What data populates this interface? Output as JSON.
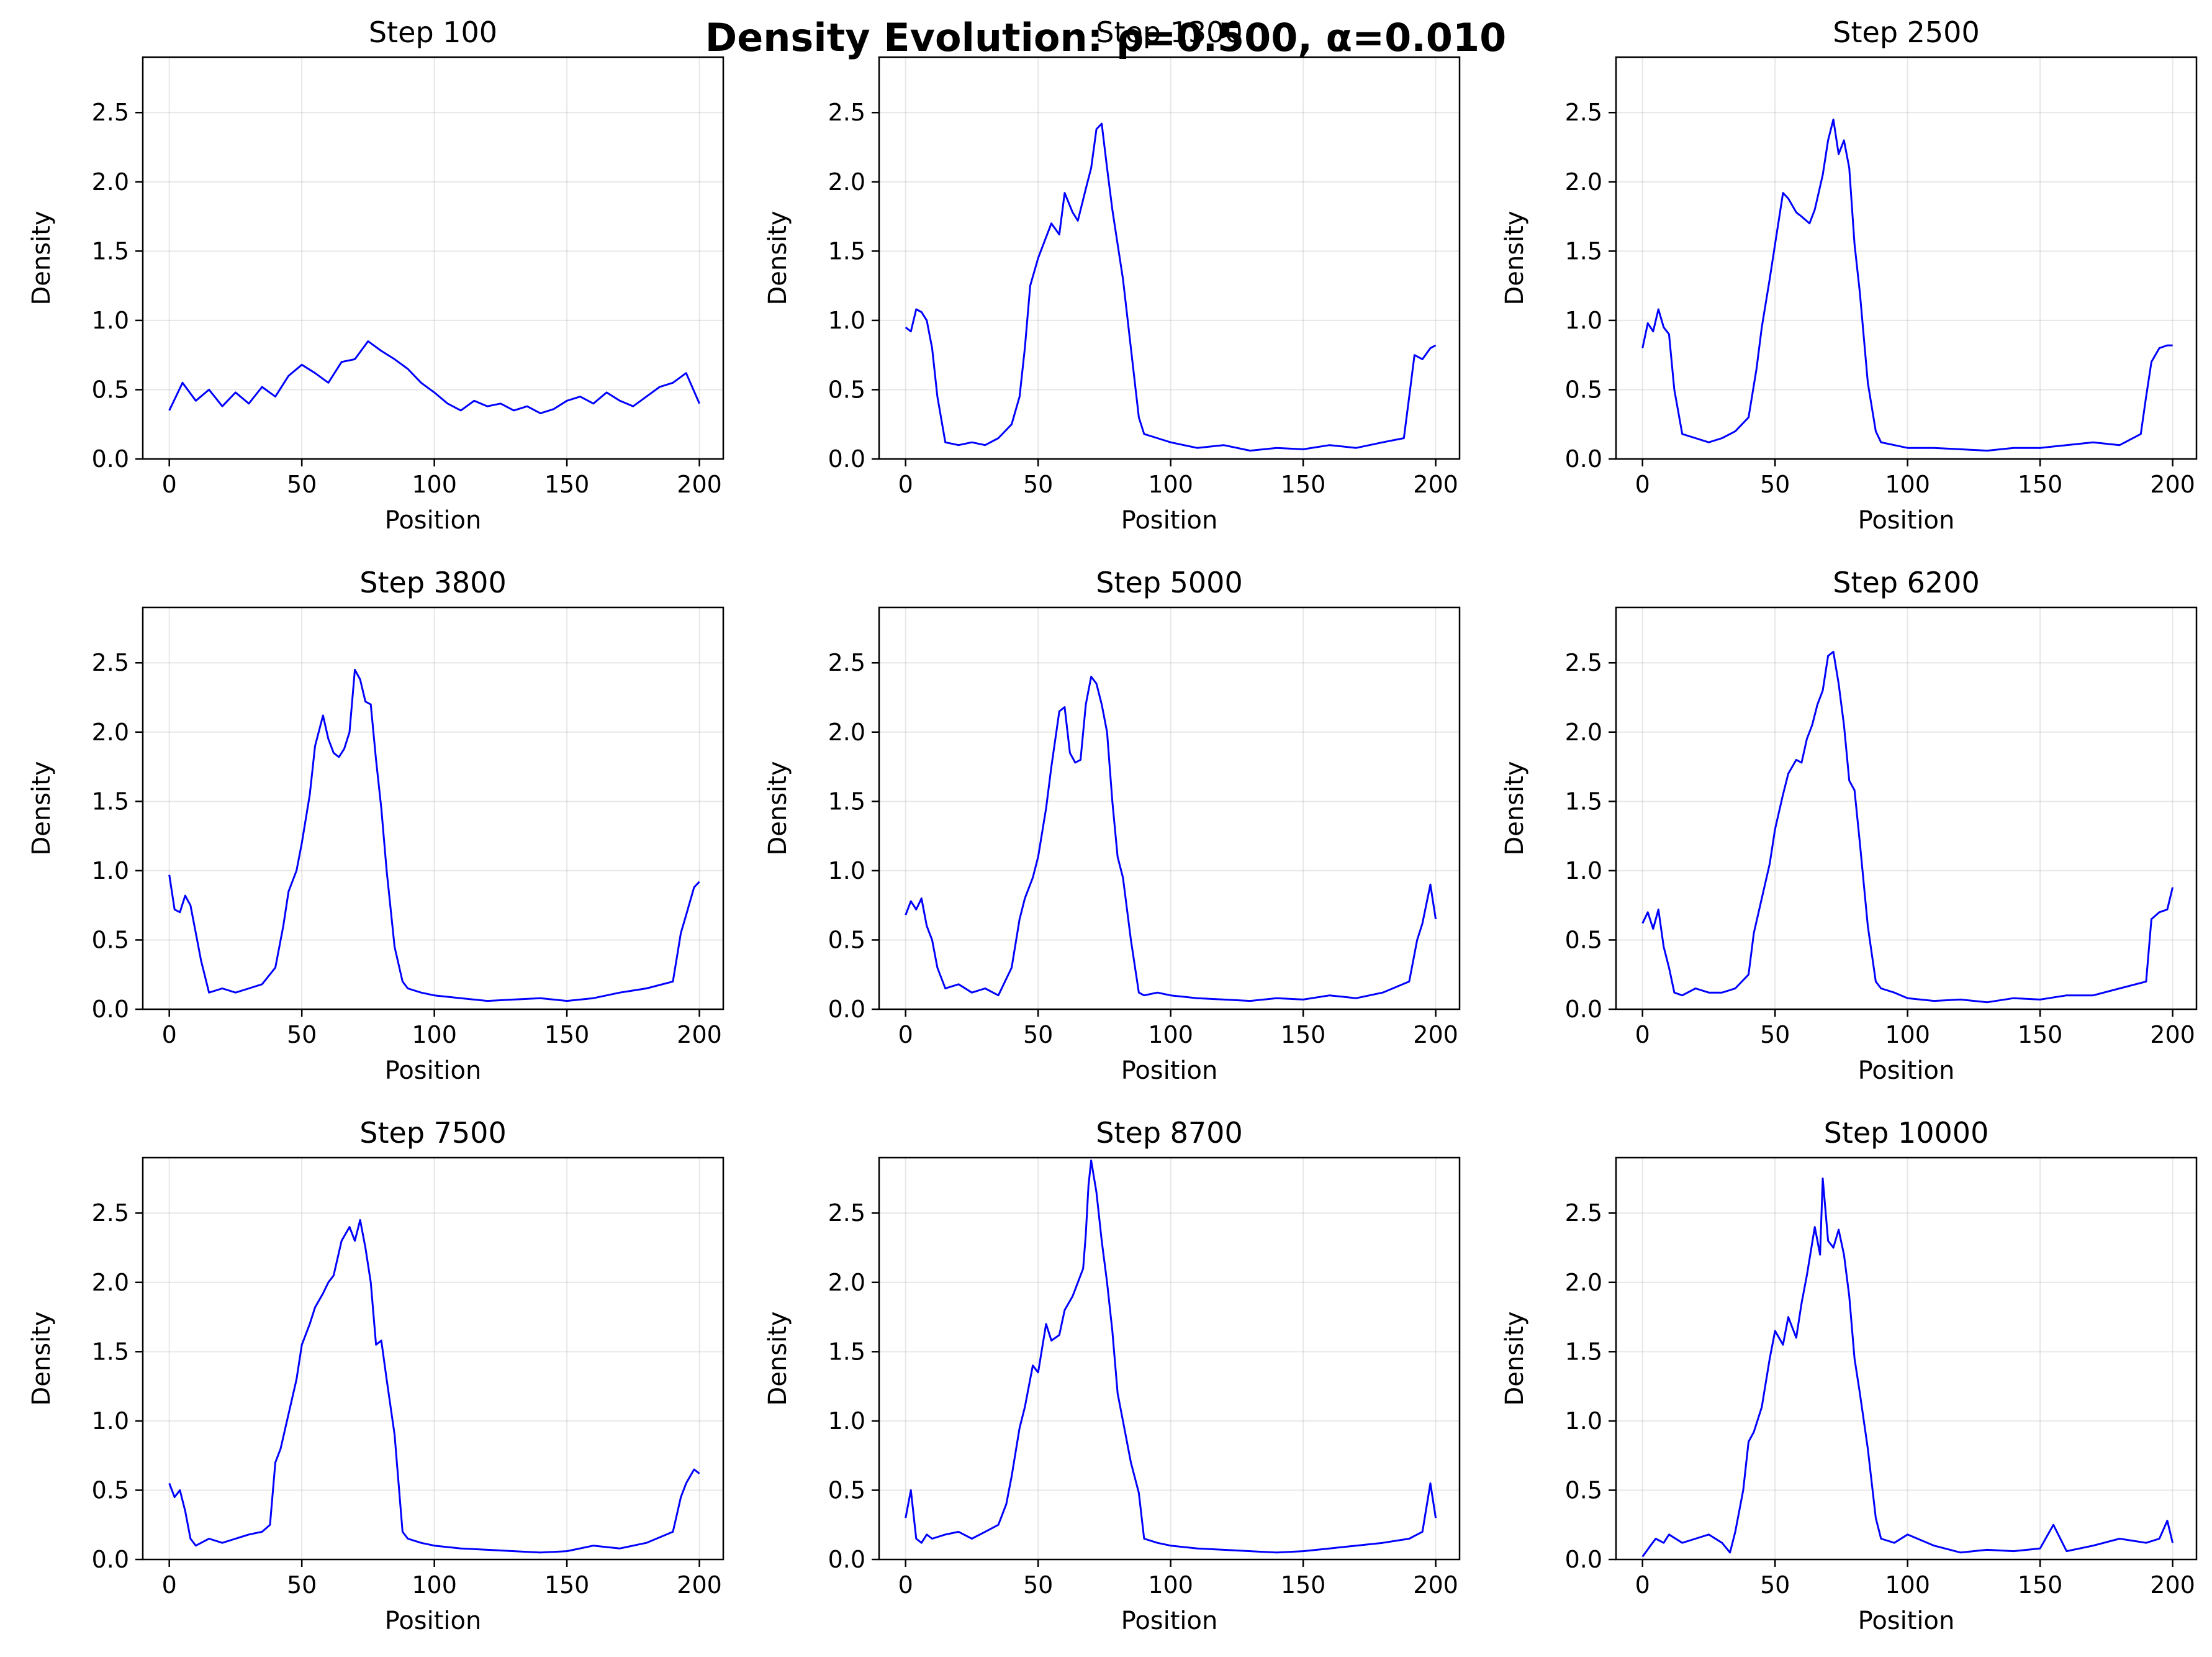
{
  "figure": {
    "title": "Density Evolution: ρ=0.500, α=0.010",
    "line_color": "#0000ff"
  },
  "chart_data": [
    {
      "type": "line",
      "title": "Step 100",
      "xlabel": "Position",
      "ylabel": "Density",
      "xlim": [
        -10,
        209
      ],
      "ylim": [
        0,
        2.9
      ],
      "xticks": [
        0,
        50,
        100,
        150,
        200
      ],
      "yticks": [
        0.0,
        0.5,
        1.0,
        1.5,
        2.0,
        2.5
      ],
      "xtick_labels": [
        "0",
        "50",
        "100",
        "150",
        "200"
      ],
      "ytick_labels": [
        "0.0",
        "0.5",
        "1.0",
        "1.5",
        "2.0",
        "2.5"
      ],
      "grid": true,
      "x": [
        0,
        5,
        10,
        15,
        20,
        25,
        30,
        35,
        40,
        45,
        50,
        55,
        60,
        65,
        70,
        75,
        80,
        85,
        90,
        95,
        100,
        105,
        110,
        115,
        120,
        125,
        130,
        135,
        140,
        145,
        150,
        155,
        160,
        165,
        170,
        175,
        180,
        185,
        190,
        195,
        200
      ],
      "y": [
        0.35,
        0.55,
        0.42,
        0.5,
        0.38,
        0.48,
        0.4,
        0.52,
        0.45,
        0.6,
        0.68,
        0.62,
        0.55,
        0.7,
        0.72,
        0.85,
        0.78,
        0.72,
        0.65,
        0.55,
        0.48,
        0.4,
        0.35,
        0.42,
        0.38,
        0.4,
        0.35,
        0.38,
        0.33,
        0.36,
        0.42,
        0.45,
        0.4,
        0.48,
        0.42,
        0.38,
        0.45,
        0.52,
        0.55,
        0.62,
        0.4
      ]
    },
    {
      "type": "line",
      "title": "Step 1300",
      "xlabel": "Position",
      "ylabel": "Density",
      "xlim": [
        -10,
        209
      ],
      "ylim": [
        0,
        2.9
      ],
      "xticks": [
        0,
        50,
        100,
        150,
        200
      ],
      "yticks": [
        0.0,
        0.5,
        1.0,
        1.5,
        2.0,
        2.5
      ],
      "xtick_labels": [
        "0",
        "50",
        "100",
        "150",
        "200"
      ],
      "ytick_labels": [
        "0.0",
        "0.5",
        "1.0",
        "1.5",
        "2.0",
        "2.5"
      ],
      "grid": true,
      "x": [
        0,
        2,
        4,
        6,
        8,
        10,
        12,
        15,
        20,
        25,
        30,
        35,
        40,
        43,
        45,
        47,
        50,
        53,
        55,
        58,
        60,
        63,
        65,
        68,
        70,
        72,
        74,
        76,
        78,
        80,
        82,
        85,
        88,
        90,
        95,
        100,
        110,
        120,
        130,
        140,
        150,
        160,
        170,
        180,
        188,
        190,
        192,
        195,
        198,
        200
      ],
      "y": [
        0.95,
        0.92,
        1.08,
        1.06,
        1.0,
        0.8,
        0.45,
        0.12,
        0.1,
        0.12,
        0.1,
        0.15,
        0.25,
        0.45,
        0.8,
        1.25,
        1.45,
        1.6,
        1.7,
        1.62,
        1.92,
        1.78,
        1.72,
        1.95,
        2.1,
        2.38,
        2.42,
        2.1,
        1.8,
        1.55,
        1.3,
        0.8,
        0.3,
        0.18,
        0.15,
        0.12,
        0.08,
        0.1,
        0.06,
        0.08,
        0.07,
        0.1,
        0.08,
        0.12,
        0.15,
        0.45,
        0.75,
        0.72,
        0.8,
        0.82
      ]
    },
    {
      "type": "line",
      "title": "Step 2500",
      "xlabel": "Position",
      "ylabel": "Density",
      "xlim": [
        -10,
        209
      ],
      "ylim": [
        0,
        2.9
      ],
      "xticks": [
        0,
        50,
        100,
        150,
        200
      ],
      "yticks": [
        0.0,
        0.5,
        1.0,
        1.5,
        2.0,
        2.5
      ],
      "xtick_labels": [
        "0",
        "50",
        "100",
        "150",
        "200"
      ],
      "ytick_labels": [
        "0.0",
        "0.5",
        "1.0",
        "1.5",
        "2.0",
        "2.5"
      ],
      "grid": true,
      "x": [
        0,
        2,
        4,
        6,
        8,
        10,
        12,
        15,
        20,
        25,
        30,
        35,
        40,
        43,
        45,
        48,
        50,
        53,
        55,
        58,
        60,
        63,
        65,
        68,
        70,
        72,
        74,
        76,
        78,
        80,
        82,
        85,
        88,
        90,
        95,
        100,
        110,
        120,
        130,
        140,
        150,
        160,
        170,
        180,
        188,
        190,
        192,
        195,
        198,
        200
      ],
      "y": [
        0.8,
        0.98,
        0.92,
        1.08,
        0.95,
        0.9,
        0.5,
        0.18,
        0.15,
        0.12,
        0.15,
        0.2,
        0.3,
        0.65,
        0.95,
        1.3,
        1.55,
        1.92,
        1.88,
        1.78,
        1.75,
        1.7,
        1.8,
        2.05,
        2.3,
        2.45,
        2.2,
        2.3,
        2.1,
        1.55,
        1.2,
        0.55,
        0.2,
        0.12,
        0.1,
        0.08,
        0.08,
        0.07,
        0.06,
        0.08,
        0.08,
        0.1,
        0.12,
        0.1,
        0.18,
        0.45,
        0.7,
        0.8,
        0.82,
        0.82
      ]
    },
    {
      "type": "line",
      "title": "Step 3800",
      "xlabel": "Position",
      "ylabel": "Density",
      "xlim": [
        -10,
        209
      ],
      "ylim": [
        0,
        2.9
      ],
      "xticks": [
        0,
        50,
        100,
        150,
        200
      ],
      "yticks": [
        0.0,
        0.5,
        1.0,
        1.5,
        2.0,
        2.5
      ],
      "xtick_labels": [
        "0",
        "50",
        "100",
        "150",
        "200"
      ],
      "ytick_labels": [
        "0.0",
        "0.5",
        "1.0",
        "1.5",
        "2.0",
        "2.5"
      ],
      "grid": true,
      "x": [
        0,
        2,
        4,
        6,
        8,
        10,
        12,
        15,
        20,
        25,
        30,
        35,
        40,
        43,
        45,
        48,
        50,
        53,
        55,
        58,
        60,
        62,
        64,
        66,
        68,
        70,
        72,
        74,
        76,
        78,
        80,
        82,
        85,
        88,
        90,
        95,
        100,
        110,
        120,
        130,
        140,
        150,
        160,
        170,
        180,
        190,
        193,
        195,
        198,
        200
      ],
      "y": [
        0.97,
        0.72,
        0.7,
        0.82,
        0.75,
        0.55,
        0.35,
        0.12,
        0.15,
        0.12,
        0.15,
        0.18,
        0.3,
        0.6,
        0.85,
        1.0,
        1.2,
        1.55,
        1.9,
        2.12,
        1.95,
        1.85,
        1.82,
        1.88,
        2.0,
        2.45,
        2.38,
        2.22,
        2.2,
        1.8,
        1.45,
        1.0,
        0.45,
        0.2,
        0.15,
        0.12,
        0.1,
        0.08,
        0.06,
        0.07,
        0.08,
        0.06,
        0.08,
        0.12,
        0.15,
        0.2,
        0.55,
        0.68,
        0.88,
        0.92
      ]
    },
    {
      "type": "line",
      "title": "Step 5000",
      "xlabel": "Position",
      "ylabel": "Density",
      "xlim": [
        -10,
        209
      ],
      "ylim": [
        0,
        2.9
      ],
      "xticks": [
        0,
        50,
        100,
        150,
        200
      ],
      "yticks": [
        0.0,
        0.5,
        1.0,
        1.5,
        2.0,
        2.5
      ],
      "xtick_labels": [
        "0",
        "50",
        "100",
        "150",
        "200"
      ],
      "ytick_labels": [
        "0.0",
        "0.5",
        "1.0",
        "1.5",
        "2.0",
        "2.5"
      ],
      "grid": true,
      "x": [
        0,
        2,
        4,
        6,
        8,
        10,
        12,
        15,
        20,
        25,
        30,
        35,
        40,
        43,
        45,
        48,
        50,
        53,
        55,
        58,
        60,
        62,
        64,
        66,
        68,
        70,
        72,
        74,
        76,
        78,
        80,
        82,
        85,
        88,
        90,
        95,
        100,
        110,
        120,
        130,
        140,
        150,
        160,
        170,
        180,
        190,
        193,
        195,
        198,
        200
      ],
      "y": [
        0.68,
        0.78,
        0.72,
        0.8,
        0.6,
        0.5,
        0.3,
        0.15,
        0.18,
        0.12,
        0.15,
        0.1,
        0.3,
        0.65,
        0.8,
        0.95,
        1.1,
        1.45,
        1.75,
        2.15,
        2.18,
        1.85,
        1.78,
        1.8,
        2.2,
        2.4,
        2.35,
        2.2,
        2.0,
        1.5,
        1.1,
        0.95,
        0.5,
        0.12,
        0.1,
        0.12,
        0.1,
        0.08,
        0.07,
        0.06,
        0.08,
        0.07,
        0.1,
        0.08,
        0.12,
        0.2,
        0.5,
        0.62,
        0.9,
        0.65
      ]
    },
    {
      "type": "line",
      "title": "Step 6200",
      "xlabel": "Position",
      "ylabel": "Density",
      "xlim": [
        -10,
        209
      ],
      "ylim": [
        0,
        2.9
      ],
      "xticks": [
        0,
        50,
        100,
        150,
        200
      ],
      "yticks": [
        0.0,
        0.5,
        1.0,
        1.5,
        2.0,
        2.5
      ],
      "xtick_labels": [
        "0",
        "50",
        "100",
        "150",
        "200"
      ],
      "ytick_labels": [
        "0.0",
        "0.5",
        "1.0",
        "1.5",
        "2.0",
        "2.5"
      ],
      "grid": true,
      "x": [
        0,
        2,
        4,
        6,
        8,
        10,
        12,
        15,
        20,
        25,
        30,
        35,
        40,
        42,
        45,
        48,
        50,
        53,
        55,
        58,
        60,
        62,
        64,
        66,
        68,
        70,
        72,
        74,
        76,
        78,
        80,
        82,
        85,
        88,
        90,
        95,
        100,
        110,
        120,
        130,
        140,
        150,
        160,
        170,
        180,
        190,
        192,
        195,
        198,
        200
      ],
      "y": [
        0.62,
        0.7,
        0.58,
        0.72,
        0.45,
        0.3,
        0.12,
        0.1,
        0.15,
        0.12,
        0.12,
        0.15,
        0.25,
        0.55,
        0.8,
        1.05,
        1.3,
        1.55,
        1.7,
        1.8,
        1.78,
        1.95,
        2.05,
        2.2,
        2.3,
        2.55,
        2.58,
        2.35,
        2.05,
        1.65,
        1.58,
        1.2,
        0.6,
        0.2,
        0.15,
        0.12,
        0.08,
        0.06,
        0.07,
        0.05,
        0.08,
        0.07,
        0.1,
        0.1,
        0.15,
        0.2,
        0.65,
        0.7,
        0.72,
        0.88
      ]
    },
    {
      "type": "line",
      "title": "Step 7500",
      "xlabel": "Position",
      "ylabel": "Density",
      "xlim": [
        -10,
        209
      ],
      "ylim": [
        0,
        2.9
      ],
      "xticks": [
        0,
        50,
        100,
        150,
        200
      ],
      "yticks": [
        0.0,
        0.5,
        1.0,
        1.5,
        2.0,
        2.5
      ],
      "xtick_labels": [
        "0",
        "50",
        "100",
        "150",
        "200"
      ],
      "ytick_labels": [
        "0.0",
        "0.5",
        "1.0",
        "1.5",
        "2.0",
        "2.5"
      ],
      "grid": true,
      "x": [
        0,
        2,
        4,
        6,
        8,
        10,
        12,
        15,
        20,
        25,
        30,
        35,
        38,
        40,
        42,
        45,
        48,
        50,
        53,
        55,
        58,
        60,
        62,
        65,
        68,
        70,
        72,
        74,
        76,
        78,
        80,
        82,
        85,
        88,
        90,
        95,
        100,
        110,
        120,
        130,
        140,
        150,
        160,
        170,
        180,
        190,
        193,
        195,
        198,
        200
      ],
      "y": [
        0.55,
        0.45,
        0.5,
        0.35,
        0.15,
        0.1,
        0.12,
        0.15,
        0.12,
        0.15,
        0.18,
        0.2,
        0.25,
        0.7,
        0.8,
        1.05,
        1.3,
        1.55,
        1.7,
        1.82,
        1.92,
        2.0,
        2.05,
        2.3,
        2.4,
        2.3,
        2.45,
        2.25,
        2.0,
        1.55,
        1.58,
        1.3,
        0.9,
        0.2,
        0.15,
        0.12,
        0.1,
        0.08,
        0.07,
        0.06,
        0.05,
        0.06,
        0.1,
        0.08,
        0.12,
        0.2,
        0.45,
        0.55,
        0.65,
        0.62
      ]
    },
    {
      "type": "line",
      "title": "Step 8700",
      "xlabel": "Position",
      "ylabel": "Density",
      "xlim": [
        -10,
        209
      ],
      "ylim": [
        0,
        2.9
      ],
      "xticks": [
        0,
        50,
        100,
        150,
        200
      ],
      "yticks": [
        0.0,
        0.5,
        1.0,
        1.5,
        2.0,
        2.5
      ],
      "xtick_labels": [
        "0",
        "50",
        "100",
        "150",
        "200"
      ],
      "ytick_labels": [
        "0.0",
        "0.5",
        "1.0",
        "1.5",
        "2.0",
        "2.5"
      ],
      "grid": true,
      "x": [
        0,
        2,
        4,
        6,
        8,
        10,
        15,
        20,
        25,
        30,
        35,
        38,
        40,
        43,
        45,
        48,
        50,
        53,
        55,
        58,
        60,
        63,
        65,
        67,
        68,
        69,
        70,
        72,
        74,
        76,
        78,
        80,
        82,
        85,
        88,
        90,
        95,
        100,
        110,
        120,
        130,
        140,
        150,
        160,
        170,
        180,
        190,
        195,
        198,
        200
      ],
      "y": [
        0.3,
        0.5,
        0.15,
        0.12,
        0.18,
        0.15,
        0.18,
        0.2,
        0.15,
        0.2,
        0.25,
        0.4,
        0.6,
        0.95,
        1.1,
        1.4,
        1.35,
        1.7,
        1.58,
        1.62,
        1.8,
        1.9,
        2.0,
        2.1,
        2.35,
        2.7,
        2.88,
        2.65,
        2.3,
        2.0,
        1.65,
        1.2,
        1.0,
        0.7,
        0.48,
        0.15,
        0.12,
        0.1,
        0.08,
        0.07,
        0.06,
        0.05,
        0.06,
        0.08,
        0.1,
        0.12,
        0.15,
        0.2,
        0.55,
        0.3
      ]
    },
    {
      "type": "line",
      "title": "Step 10000",
      "xlabel": "Position",
      "ylabel": "Density",
      "xlim": [
        -10,
        209
      ],
      "ylim": [
        0,
        2.9
      ],
      "xticks": [
        0,
        50,
        100,
        150,
        200
      ],
      "yticks": [
        0.0,
        0.5,
        1.0,
        1.5,
        2.0,
        2.5
      ],
      "xtick_labels": [
        "0",
        "50",
        "100",
        "150",
        "200"
      ],
      "ytick_labels": [
        "0.0",
        "0.5",
        "1.0",
        "1.5",
        "2.0",
        "2.5"
      ],
      "grid": true,
      "x": [
        0,
        3,
        5,
        8,
        10,
        15,
        20,
        25,
        30,
        33,
        35,
        38,
        40,
        42,
        45,
        48,
        50,
        53,
        55,
        58,
        60,
        62,
        65,
        67,
        68,
        70,
        72,
        74,
        76,
        78,
        80,
        82,
        85,
        88,
        90,
        95,
        100,
        110,
        120,
        130,
        140,
        150,
        155,
        160,
        170,
        180,
        190,
        195,
        198,
        200
      ],
      "y": [
        0.02,
        0.1,
        0.15,
        0.12,
        0.18,
        0.12,
        0.15,
        0.18,
        0.12,
        0.05,
        0.2,
        0.5,
        0.85,
        0.92,
        1.1,
        1.45,
        1.65,
        1.55,
        1.75,
        1.6,
        1.85,
        2.05,
        2.4,
        2.2,
        2.75,
        2.3,
        2.25,
        2.38,
        2.2,
        1.9,
        1.45,
        1.2,
        0.8,
        0.3,
        0.15,
        0.12,
        0.18,
        0.1,
        0.05,
        0.07,
        0.06,
        0.08,
        0.25,
        0.06,
        0.1,
        0.15,
        0.12,
        0.15,
        0.28,
        0.12
      ]
    }
  ]
}
